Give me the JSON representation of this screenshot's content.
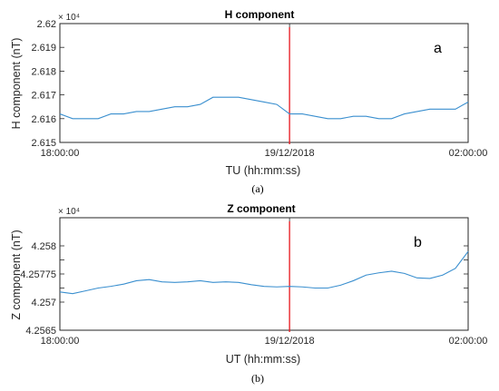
{
  "colors": {
    "series": "#3a8fcf",
    "marker": "#e8161c",
    "axis": "#262626"
  },
  "chart_data": [
    {
      "type": "line",
      "title": "H component",
      "xlabel": "TU (hh:mm:ss)",
      "ylabel": "H component (nT)",
      "exponent_label": "× 10⁴",
      "panel_letter": "a",
      "caption": "(a)",
      "xlim": [
        0,
        8
      ],
      "x_tick_values": [
        0,
        4.5,
        8
      ],
      "x_tick_labels": [
        "18:00:00",
        "19/12/2018",
        "02:00:00"
      ],
      "ylim": [
        2.615,
        2.62
      ],
      "y_ticks": [
        2.615,
        2.616,
        2.617,
        2.618,
        2.619,
        2.62
      ],
      "y_tick_labels": [
        "2.615",
        "2.616",
        "2.617",
        "2.618",
        "2.619",
        "2.62"
      ],
      "marker_line_x": 4.5,
      "series": [
        {
          "x": [
            0,
            0.25,
            0.5,
            0.75,
            1,
            1.25,
            1.5,
            1.75,
            2,
            2.25,
            2.5,
            2.75,
            3,
            3.25,
            3.5,
            3.75,
            4,
            4.25,
            4.5,
            4.75,
            5,
            5.25,
            5.5,
            5.75,
            6,
            6.25,
            6.5,
            6.75,
            7,
            7.25,
            7.5,
            7.75,
            8
          ],
          "y": [
            2.6162,
            2.616,
            2.616,
            2.616,
            2.6162,
            2.6162,
            2.6163,
            2.6163,
            2.6164,
            2.6165,
            2.6165,
            2.6166,
            2.6169,
            2.6169,
            2.6169,
            2.6168,
            2.6167,
            2.6166,
            2.6162,
            2.6162,
            2.6161,
            2.616,
            2.616,
            2.6161,
            2.6161,
            2.616,
            2.616,
            2.6162,
            2.6163,
            2.6164,
            2.6164,
            2.6164,
            2.6167
          ]
        }
      ]
    },
    {
      "type": "line",
      "title": "Z component",
      "xlabel": "UT (hh:mm:ss)",
      "ylabel": "Z component (nT)",
      "exponent_label": "× 10⁴",
      "panel_letter": "b",
      "caption": "(b)",
      "xlim": [
        0,
        8
      ],
      "x_tick_values": [
        0,
        4.5,
        8
      ],
      "x_tick_labels": [
        "18:00:00",
        "19/12/2018",
        "02:00:00"
      ],
      "ylim": [
        4.2565,
        4.2585
      ],
      "y_ticks": [
        4.2565,
        4.257,
        4.25725,
        4.2575,
        4.25775,
        4.258
      ],
      "y_tick_labels": [
        "4.2565",
        "4.257",
        "",
        "4.25775",
        "",
        "4.258"
      ],
      "marker_line_x": 4.5,
      "series": [
        {
          "x": [
            0,
            0.25,
            0.5,
            0.75,
            1,
            1.25,
            1.5,
            1.75,
            2,
            2.25,
            2.5,
            2.75,
            3,
            3.25,
            3.5,
            3.75,
            4,
            4.25,
            4.5,
            4.75,
            5,
            5.25,
            5.5,
            5.75,
            6,
            6.25,
            6.5,
            6.75,
            7,
            7.25,
            7.5,
            7.75,
            8
          ],
          "y": [
            4.25718,
            4.25715,
            4.2572,
            4.25725,
            4.25728,
            4.25732,
            4.25738,
            4.2574,
            4.25736,
            4.25735,
            4.25736,
            4.25738,
            4.25735,
            4.25736,
            4.25735,
            4.25731,
            4.25728,
            4.25727,
            4.25728,
            4.25727,
            4.25725,
            4.25725,
            4.2573,
            4.25738,
            4.25748,
            4.25752,
            4.25755,
            4.25751,
            4.25743,
            4.25742,
            4.25748,
            4.2576,
            4.2579
          ]
        }
      ]
    }
  ]
}
